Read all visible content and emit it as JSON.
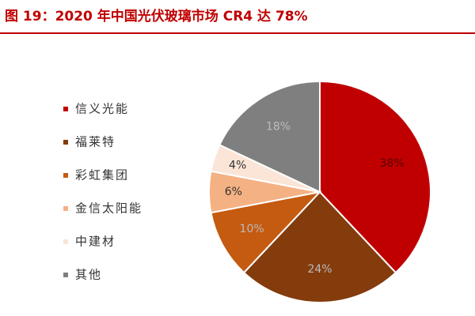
{
  "chart_data": {
    "type": "pie",
    "title": "图 19：2020 年中国光伏玻璃市场 CR4 达 78%",
    "categories": [
      "信义光能",
      "福莱特",
      "彩虹集团",
      "金信太阳能",
      "中建材",
      "其他"
    ],
    "values": [
      38,
      24,
      10,
      6,
      4,
      18
    ],
    "value_labels": [
      "38%",
      "24%",
      "10%",
      "6%",
      "4%",
      "18%"
    ],
    "colors": [
      "#c00000",
      "#843c0c",
      "#c55a11",
      "#f4b183",
      "#fbe5d6",
      "#7f7f7f"
    ],
    "legend": "left"
  }
}
